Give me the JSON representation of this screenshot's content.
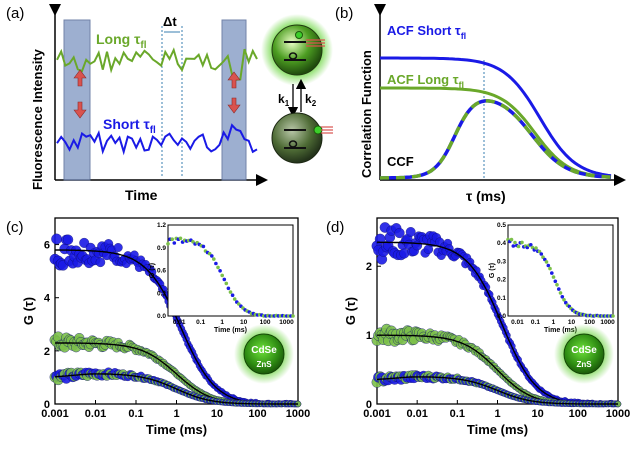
{
  "colors": {
    "blue": "#1a1ae6",
    "green": "#6aa82a",
    "lightgreen": "#7cc04a",
    "band": "#8da2c8",
    "arrow": "#d9534f",
    "dark": "#000000"
  },
  "panels": {
    "a": {
      "label": "(a)",
      "ylabel": "Fluorescence Intensity",
      "xlabel": "Time",
      "long_label": "Long τ",
      "long_sub": "fl",
      "short_label": "Short τ",
      "short_sub": "fl",
      "dt_label": "Δt",
      "k1": "k",
      "k1_sub": "1",
      "k2": "k",
      "k2_sub": "2"
    },
    "b": {
      "label": "(b)",
      "ylabel": "Correlation Function",
      "xlabel": "τ (ms)",
      "acf_short": "ACF Short τ",
      "acf_short_sub": "fl",
      "acf_long": "ACF Long τ",
      "acf_long_sub": "fl",
      "ccf": "CCF"
    },
    "c": {
      "label": "(c)",
      "ylabel": "G (τ)",
      "xlabel": "Time (ms)",
      "inset_ylabel": "G (τ)",
      "inset_xlabel": "Time (ms)",
      "core": "CdSe",
      "shell": "ZnS"
    },
    "d": {
      "label": "(d)",
      "ylabel": "G (τ)",
      "xlabel": "Time (ms)",
      "inset_ylabel": "G (τ)",
      "inset_xlabel": "Time (ms)",
      "core": "CdSe",
      "shell": "ZnS"
    }
  },
  "chart_data": [
    {
      "panel": "c",
      "type": "scatter",
      "title": "",
      "xlabel": "Time (ms)",
      "ylabel": "G (τ)",
      "xscale": "log",
      "xlim": [
        0.001,
        1000
      ],
      "ylim": [
        0,
        7
      ],
      "x_ticks": [
        "0.001",
        "0.01",
        "0.1",
        "1",
        "10",
        "100",
        "1000"
      ],
      "y_ticks": [
        "0",
        "2",
        "4",
        "6"
      ],
      "series": [
        {
          "name": "ACF short τfl (blue)",
          "color": "blue",
          "amplitude": 5.8,
          "tau_ms": 1.3
        },
        {
          "name": "ACF long τfl (green)",
          "color": "green",
          "amplitude": 2.3,
          "tau_ms": 1.0
        },
        {
          "name": "CCF",
          "color": "mixed",
          "amplitude": 1.15,
          "tau_ms": 1.0,
          "rise_ms": 0.003
        }
      ],
      "inset": {
        "xlim": [
          0.003,
          2000
        ],
        "ylim": [
          0,
          1.2
        ],
        "x_ticks": [
          "0.01",
          "0.1",
          "1",
          "10",
          "100",
          "1000"
        ],
        "y_ticks": [
          "0.0",
          "0.3",
          "0.6",
          "0.9",
          "1.2"
        ],
        "plateau": 1.0
      }
    },
    {
      "panel": "d",
      "type": "scatter",
      "title": "",
      "xlabel": "Time (ms)",
      "ylabel": "G (τ)",
      "xscale": "log",
      "xlim": [
        0.001,
        1000
      ],
      "ylim": [
        0,
        2.7
      ],
      "x_ticks": [
        "0.001",
        "0.01",
        "0.1",
        "1",
        "10",
        "100",
        "1000"
      ],
      "y_ticks": [
        "0",
        "1",
        "2"
      ],
      "series": [
        {
          "name": "ACF short τfl (blue)",
          "color": "blue",
          "amplitude": 2.35,
          "tau_ms": 1.3
        },
        {
          "name": "ACF long τfl (green)",
          "color": "green",
          "amplitude": 1.0,
          "tau_ms": 1.0
        },
        {
          "name": "CCF",
          "color": "mixed",
          "amplitude": 0.4,
          "tau_ms": 1.0,
          "rise_ms": 0.003
        }
      ],
      "inset": {
        "xlim": [
          0.003,
          2000
        ],
        "ylim": [
          0,
          0.5
        ],
        "x_ticks": [
          "0.01",
          "0.1",
          "1",
          "10",
          "100",
          "1000"
        ],
        "y_ticks": [
          "0.0",
          "0.1",
          "0.2",
          "0.3",
          "0.4",
          "0.5"
        ],
        "plateau": 0.4
      }
    }
  ]
}
